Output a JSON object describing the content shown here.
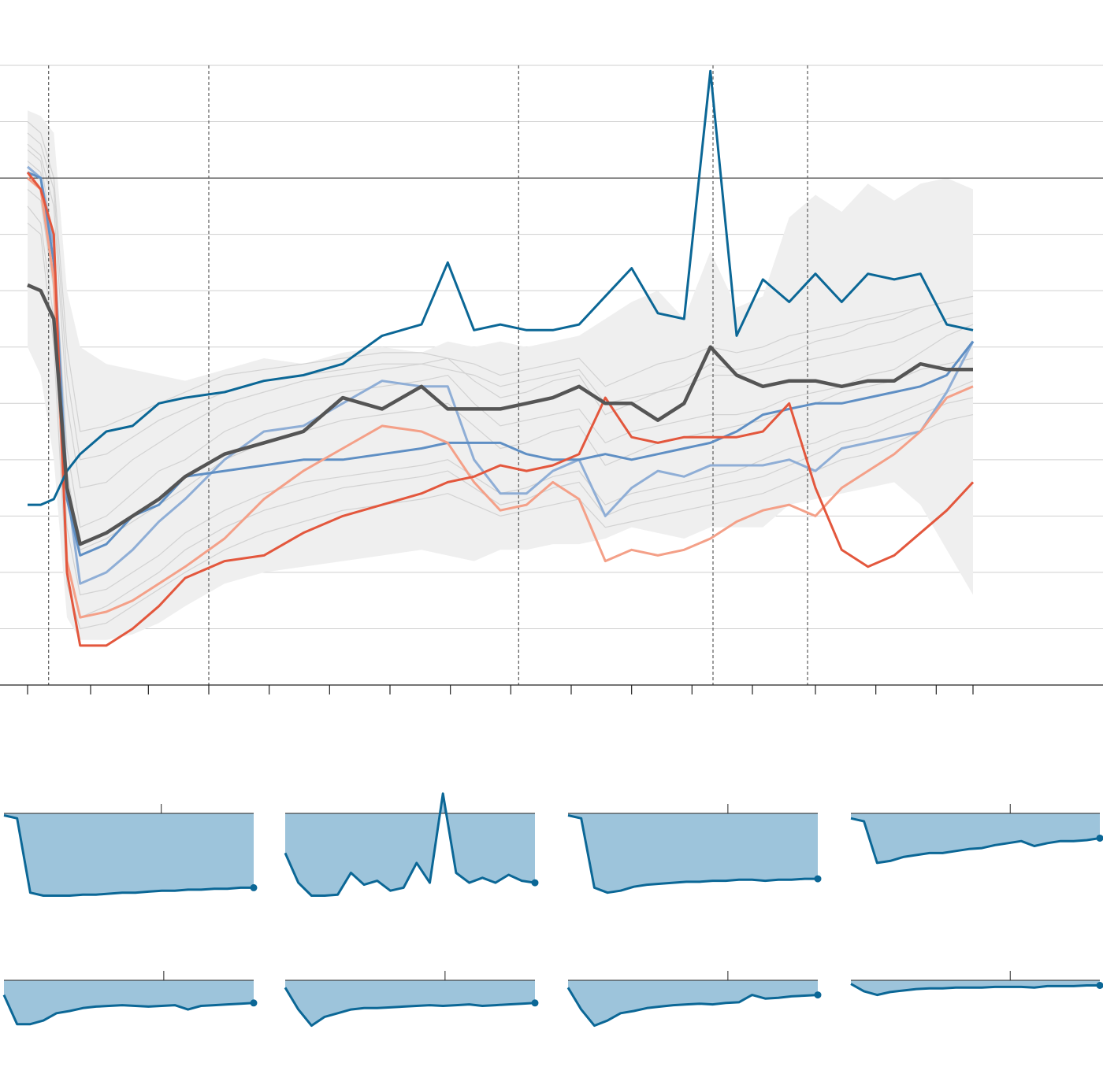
{
  "colors": {
    "background": "#ffffff",
    "grid": "#cfcfcf",
    "baseline": "#222222",
    "axis": "#222222",
    "band_fill": "#efefef",
    "thin_line": "#d2d2d2",
    "median": "#555555",
    "dark_blue": "#0b6796",
    "light_blue": "#8faed6",
    "mid_blue": "#5f8fc4",
    "salmon": "#f4a088",
    "red": "#e3573d",
    "small_fill": "#9dc4db",
    "small_line": "#0b6796",
    "event_line": "#666666"
  },
  "chart_data": [
    {
      "type": "line",
      "title": "",
      "xlabel": "",
      "ylabel": "",
      "x": [
        0,
        5,
        10,
        15,
        20,
        30,
        40,
        50,
        60,
        75,
        90,
        105,
        120,
        135,
        150,
        160,
        170,
        180,
        190,
        200,
        210,
        220,
        230,
        240,
        250,
        260,
        270,
        280,
        290,
        300,
        310,
        320,
        330,
        340,
        350,
        360
      ],
      "xlim": [
        0,
        360
      ],
      "ylim": [
        -90,
        20
      ],
      "y_gridlines": [
        -90,
        -80,
        -70,
        -60,
        -50,
        -40,
        -30,
        -20,
        -10,
        0,
        10,
        20
      ],
      "baseline_y": 0,
      "x_ticks": [
        0,
        24,
        46,
        69,
        92,
        115,
        138,
        161,
        184,
        207,
        230,
        253,
        276,
        300,
        323,
        346,
        360
      ],
      "event_lines": [
        8,
        69,
        187,
        261,
        297
      ],
      "band": {
        "upper": [
          12,
          11,
          8,
          -20,
          -30,
          -33,
          -34,
          -35,
          -36,
          -34,
          -32,
          -33,
          -31,
          -30,
          -31,
          -29,
          -30,
          -29,
          -30,
          -29,
          -28,
          -25,
          -22,
          -20,
          -25,
          -13,
          -23,
          -21,
          -7,
          -3,
          -6,
          -1,
          -4,
          -1,
          0,
          -2
        ],
        "lower": [
          -30,
          -35,
          -50,
          -78,
          -82,
          -82,
          -81,
          -79,
          -76,
          -72,
          -70,
          -69,
          -68,
          -67,
          -66,
          -67,
          -68,
          -66,
          -66,
          -65,
          -65,
          -64,
          -62,
          -63,
          -64,
          -62,
          -62,
          -62,
          -58,
          -57,
          -56,
          -55,
          -54,
          -58,
          -66,
          -74
        ]
      },
      "series": [
        {
          "id": "median",
          "values": [
            -19,
            -20,
            -25,
            -55,
            -65,
            -63,
            -60,
            -57,
            -53,
            -49,
            -47,
            -45,
            -39,
            -41,
            -37,
            -41,
            -41,
            -41,
            -40,
            -39,
            -37,
            -40,
            -40,
            -43,
            -40,
            -30,
            -35,
            -37,
            -36,
            -36,
            -37,
            -36,
            -36,
            -33,
            -34,
            -34
          ]
        },
        {
          "id": "dark-blue",
          "values": [
            -58,
            -58,
            -57,
            -52,
            -49,
            -45,
            -44,
            -40,
            -39,
            -38,
            -36,
            -35,
            -33,
            -28,
            -26,
            -15,
            -27,
            -26,
            -27,
            -27,
            -26,
            -21,
            -16,
            -24,
            -25,
            19,
            -28,
            -18,
            -22,
            -17,
            -22,
            -17,
            -18,
            -17,
            -26,
            -27
          ]
        },
        {
          "id": "light-blue",
          "values": [
            2,
            0,
            -12,
            -55,
            -72,
            -70,
            -66,
            -61,
            -57,
            -50,
            -45,
            -44,
            -40,
            -36,
            -37,
            -37,
            -50,
            -56,
            -56,
            -52,
            -50,
            -60,
            -55,
            -52,
            -53,
            -51,
            -51,
            -51,
            -50,
            -52,
            -48,
            -47,
            -46,
            -45,
            -38,
            -29
          ]
        },
        {
          "id": "mid-blue",
          "values": [
            1,
            0,
            -15,
            -57,
            -67,
            -65,
            -60,
            -58,
            -53,
            -52,
            -51,
            -50,
            -50,
            -49,
            -48,
            -47,
            -47,
            -47,
            -49,
            -50,
            -50,
            -49,
            -50,
            -49,
            -48,
            -47,
            -45,
            -42,
            -41,
            -40,
            -40,
            -39,
            -38,
            -37,
            -35,
            -29
          ]
        },
        {
          "id": "salmon",
          "values": [
            0,
            -2,
            -18,
            -68,
            -78,
            -77,
            -75,
            -72,
            -69,
            -64,
            -57,
            -52,
            -48,
            -44,
            -45,
            -47,
            -54,
            -59,
            -58,
            -54,
            -57,
            -68,
            -66,
            -67,
            -66,
            -64,
            -61,
            -59,
            -58,
            -60,
            -55,
            -52,
            -49,
            -45,
            -39,
            -37
          ]
        },
        {
          "id": "red",
          "values": [
            1,
            -2,
            -10,
            -70,
            -83,
            -83,
            -80,
            -76,
            -71,
            -68,
            -67,
            -63,
            -60,
            -58,
            -56,
            -54,
            -53,
            -51,
            -52,
            -51,
            -49,
            -39,
            -46,
            -47,
            -46,
            -46,
            -46,
            -45,
            -40,
            -55,
            -66,
            -69,
            -67,
            -63,
            -59,
            -54
          ]
        }
      ],
      "thin_series": [
        [
          5,
          3,
          -12,
          -48,
          -62,
          -60,
          -56,
          -52,
          -50,
          -45,
          -42,
          -40,
          -38,
          -37,
          -36,
          -35,
          -40,
          -44,
          -43,
          -42,
          -41,
          -47,
          -45,
          -44,
          -43,
          -42,
          -42,
          -41,
          -39,
          -38,
          -37,
          -35,
          -34,
          -31,
          -28,
          -26
        ],
        [
          6,
          4,
          -5,
          -40,
          -55,
          -54,
          -50,
          -47,
          -44,
          -40,
          -38,
          -36,
          -35,
          -34,
          -33,
          -32,
          -36,
          -39,
          -38,
          -36,
          -35,
          -42,
          -40,
          -38,
          -36,
          -33,
          -34,
          -33,
          -31,
          -29,
          -28,
          -26,
          -25,
          -23,
          -22,
          -21
        ],
        [
          -2,
          -4,
          -20,
          -62,
          -74,
          -73,
          -70,
          -67,
          -63,
          -59,
          -56,
          -54,
          -53,
          -52,
          -51,
          -50,
          -53,
          -56,
          -55,
          -53,
          -52,
          -58,
          -56,
          -55,
          -54,
          -53,
          -52,
          -50,
          -48,
          -47,
          -45,
          -44,
          -42,
          -40,
          -38,
          -36
        ],
        [
          8,
          6,
          -2,
          -35,
          -50,
          -49,
          -46,
          -43,
          -41,
          -38,
          -36,
          -35,
          -34,
          -33,
          -33,
          -34,
          -35,
          -37,
          -36,
          -35,
          -34,
          -40,
          -39,
          -38,
          -37,
          -35,
          -35,
          -34,
          -33,
          -32,
          -31,
          -30,
          -29,
          -27,
          -25,
          -24
        ],
        [
          -5,
          -8,
          -25,
          -68,
          -78,
          -76,
          -73,
          -70,
          -66,
          -62,
          -59,
          -57,
          -55,
          -54,
          -53,
          -52,
          -55,
          -58,
          -57,
          -55,
          -54,
          -60,
          -58,
          -57,
          -56,
          -55,
          -54,
          -53,
          -51,
          -49,
          -47,
          -46,
          -44,
          -42,
          -40,
          -39
        ],
        [
          3,
          1,
          -15,
          -52,
          -66,
          -64,
          -61,
          -58,
          -55,
          -50,
          -47,
          -45,
          -43,
          -42,
          -41,
          -40,
          -44,
          -48,
          -47,
          -45,
          -44,
          -51,
          -49,
          -47,
          -46,
          -45,
          -44,
          -43,
          -41,
          -40,
          -38,
          -37,
          -36,
          -34,
          -33,
          -32
        ],
        [
          10,
          8,
          0,
          -30,
          -45,
          -44,
          -42,
          -40,
          -38,
          -35,
          -34,
          -33,
          -32,
          -31,
          -31,
          -32,
          -33,
          -35,
          -34,
          -33,
          -32,
          -37,
          -35,
          -33,
          -32,
          -30,
          -31,
          -30,
          -28,
          -27,
          -26,
          -25,
          -24,
          -23,
          -22,
          -21
        ],
        [
          -8,
          -10,
          -30,
          -72,
          -80,
          -79,
          -76,
          -73,
          -70,
          -66,
          -63,
          -61,
          -59,
          -58,
          -57,
          -56,
          -58,
          -60,
          -59,
          -58,
          -57,
          -62,
          -61,
          -60,
          -59,
          -58,
          -57,
          -56,
          -54,
          -52,
          -50,
          -49,
          -47,
          -45,
          -43,
          -42
        ]
      ]
    },
    {
      "type": "area",
      "panels": [
        {
          "id": "panel-1",
          "values": [
            -2,
            -5,
            -80,
            -83,
            -83,
            -83,
            -82,
            -82,
            -81,
            -80,
            -80,
            -79,
            -78,
            -78,
            -77,
            -77,
            -76,
            -76,
            -75,
            -75
          ],
          "ylim": [
            -85,
            0
          ],
          "tick_x": 0.63
        },
        {
          "id": "panel-2",
          "values": [
            -40,
            -70,
            -83,
            -83,
            -82,
            -60,
            -72,
            -68,
            -78,
            -75,
            -50,
            -70,
            20,
            -60,
            -70,
            -65,
            -70,
            -62,
            -68,
            -70
          ],
          "ylim": [
            -85,
            25
          ],
          "tick_x": 0.64
        },
        {
          "id": "panel-3",
          "values": [
            -2,
            -5,
            -75,
            -80,
            -78,
            -74,
            -72,
            -71,
            -70,
            -69,
            -69,
            -68,
            -68,
            -67,
            -67,
            -68,
            -67,
            -67,
            -66,
            -66
          ],
          "ylim": [
            -85,
            0
          ],
          "tick_x": 0.64
        },
        {
          "id": "panel-4",
          "values": [
            -5,
            -8,
            -50,
            -48,
            -44,
            -42,
            -40,
            -40,
            -38,
            -36,
            -35,
            -32,
            -30,
            -28,
            -33,
            -30,
            -28,
            -28,
            -27,
            -25
          ],
          "ylim": [
            -85,
            0
          ],
          "tick_x": 0.64
        },
        {
          "id": "panel-5",
          "values": [
            -20,
            -60,
            -60,
            -55,
            -45,
            -42,
            -38,
            -36,
            -35,
            -34,
            -35,
            -36,
            -35,
            -34,
            -40,
            -35,
            -34,
            -33,
            -32,
            -31
          ],
          "ylim": [
            -70,
            0
          ],
          "tick_x": 0.64
        },
        {
          "id": "panel-6",
          "values": [
            -10,
            -40,
            -62,
            -50,
            -45,
            -40,
            -38,
            -38,
            -37,
            -36,
            -35,
            -34,
            -35,
            -34,
            -33,
            -35,
            -34,
            -33,
            -32,
            -31
          ],
          "ylim": [
            -70,
            0
          ],
          "tick_x": 0.64
        },
        {
          "id": "panel-7",
          "values": [
            -10,
            -40,
            -62,
            -55,
            -45,
            -42,
            -38,
            -36,
            -34,
            -33,
            -32,
            -33,
            -31,
            -30,
            -20,
            -25,
            -24,
            -22,
            -21,
            -20
          ],
          "ylim": [
            -70,
            0
          ],
          "tick_x": 0.64
        },
        {
          "id": "panel-8",
          "values": [
            -5,
            -15,
            -20,
            -16,
            -14,
            -12,
            -11,
            -11,
            -10,
            -10,
            -10,
            -9,
            -9,
            -9,
            -10,
            -8,
            -8,
            -8,
            -7,
            -7
          ],
          "ylim": [
            -70,
            0
          ],
          "tick_x": 0.64
        }
      ]
    }
  ]
}
